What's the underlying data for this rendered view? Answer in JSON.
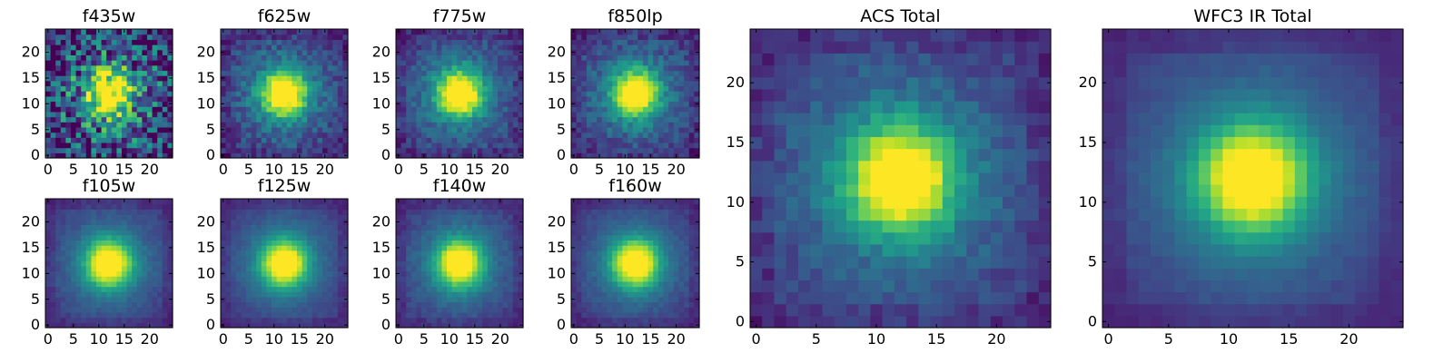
{
  "chart_data": [
    {
      "type": "heatmap",
      "title": "f435w",
      "colormap": "viridis",
      "image_size": [
        25,
        25
      ],
      "xlim": [
        -0.5,
        24.5
      ],
      "ylim": [
        -0.5,
        24.5
      ],
      "xticks": [
        0,
        5,
        10,
        15,
        20
      ],
      "yticks": [
        0,
        5,
        10,
        15,
        20
      ],
      "source_center": [
        12,
        12
      ],
      "noise": 0.8,
      "grid": false
    },
    {
      "type": "heatmap",
      "title": "f625w",
      "colormap": "viridis",
      "image_size": [
        25,
        25
      ],
      "xlim": [
        -0.5,
        24.5
      ],
      "ylim": [
        -0.5,
        24.5
      ],
      "xticks": [
        0,
        5,
        10,
        15,
        20
      ],
      "yticks": [
        0,
        5,
        10,
        15,
        20
      ],
      "source_center": [
        12,
        12
      ],
      "noise": 0.25,
      "grid": false
    },
    {
      "type": "heatmap",
      "title": "f775w",
      "colormap": "viridis",
      "image_size": [
        25,
        25
      ],
      "xlim": [
        -0.5,
        24.5
      ],
      "ylim": [
        -0.5,
        24.5
      ],
      "xticks": [
        0,
        5,
        10,
        15,
        20
      ],
      "yticks": [
        0,
        5,
        10,
        15,
        20
      ],
      "source_center": [
        12,
        12
      ],
      "noise": 0.2,
      "grid": false
    },
    {
      "type": "heatmap",
      "title": "f850lp",
      "colormap": "viridis",
      "image_size": [
        25,
        25
      ],
      "xlim": [
        -0.5,
        24.5
      ],
      "ylim": [
        -0.5,
        24.5
      ],
      "xticks": [
        0,
        5,
        10,
        15,
        20
      ],
      "yticks": [
        0,
        5,
        10,
        15,
        20
      ],
      "source_center": [
        12,
        12
      ],
      "noise": 0.22,
      "grid": false
    },
    {
      "type": "heatmap",
      "title": "f105w",
      "colormap": "viridis",
      "image_size": [
        25,
        25
      ],
      "xlim": [
        -0.5,
        24.5
      ],
      "ylim": [
        -0.5,
        24.5
      ],
      "xticks": [
        0,
        5,
        10,
        15,
        20
      ],
      "yticks": [
        0,
        5,
        10,
        15,
        20
      ],
      "source_center": [
        12,
        12
      ],
      "noise": 0.08,
      "grid": false
    },
    {
      "type": "heatmap",
      "title": "f125w",
      "colormap": "viridis",
      "image_size": [
        25,
        25
      ],
      "xlim": [
        -0.5,
        24.5
      ],
      "ylim": [
        -0.5,
        24.5
      ],
      "xticks": [
        0,
        5,
        10,
        15,
        20
      ],
      "yticks": [
        0,
        5,
        10,
        15,
        20
      ],
      "source_center": [
        12,
        12
      ],
      "noise": 0.07,
      "grid": false
    },
    {
      "type": "heatmap",
      "title": "f140w",
      "colormap": "viridis",
      "image_size": [
        25,
        25
      ],
      "xlim": [
        -0.5,
        24.5
      ],
      "ylim": [
        -0.5,
        24.5
      ],
      "xticks": [
        0,
        5,
        10,
        15,
        20
      ],
      "yticks": [
        0,
        5,
        10,
        15,
        20
      ],
      "source_center": [
        12,
        12
      ],
      "noise": 0.09,
      "grid": false
    },
    {
      "type": "heatmap",
      "title": "f160w",
      "colormap": "viridis",
      "image_size": [
        25,
        25
      ],
      "xlim": [
        -0.5,
        24.5
      ],
      "ylim": [
        -0.5,
        24.5
      ],
      "xticks": [
        0,
        5,
        10,
        15,
        20
      ],
      "yticks": [
        0,
        5,
        10,
        15,
        20
      ],
      "source_center": [
        12,
        12
      ],
      "noise": 0.08,
      "grid": false
    },
    {
      "type": "heatmap",
      "title": "ACS Total",
      "colormap": "viridis",
      "image_size": [
        25,
        25
      ],
      "xlim": [
        -0.5,
        24.5
      ],
      "ylim": [
        -0.5,
        24.5
      ],
      "xticks": [
        0,
        5,
        10,
        15,
        20
      ],
      "yticks": [
        0,
        5,
        10,
        15,
        20
      ],
      "source_center": [
        12,
        12
      ],
      "noise": 0.15,
      "grid": false
    },
    {
      "type": "heatmap",
      "title": "WFC3 IR Total",
      "colormap": "viridis",
      "image_size": [
        25,
        25
      ],
      "xlim": [
        -0.5,
        24.5
      ],
      "ylim": [
        -0.5,
        24.5
      ],
      "xticks": [
        0,
        5,
        10,
        15,
        20
      ],
      "yticks": [
        0,
        5,
        10,
        15,
        20
      ],
      "source_center": [
        12,
        12
      ],
      "noise": 0.05,
      "grid": false
    }
  ]
}
